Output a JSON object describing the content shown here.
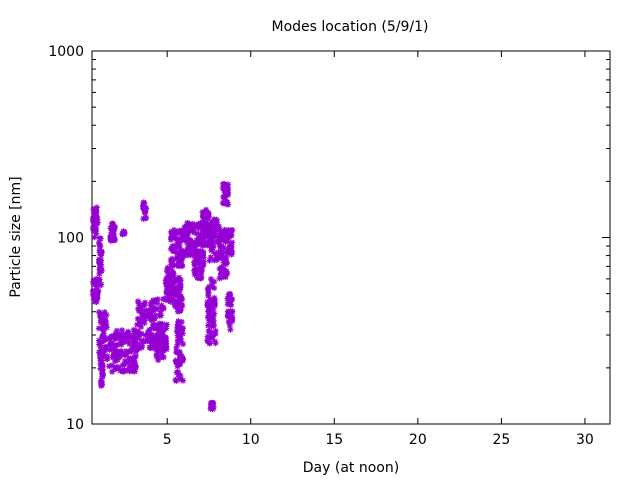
{
  "chart_data": {
    "type": "scatter",
    "title": "Modes location (5/9/1)",
    "xlabel": "Day (at noon)",
    "ylabel": "Particle size [nm]",
    "xlim": [
      0.5,
      31.5
    ],
    "ylim": [
      10,
      1000
    ],
    "y_scale": "log",
    "grid": false,
    "legend": "none",
    "marker": "asterisk",
    "color": "#9400d3",
    "x_ticks": [
      5,
      10,
      15,
      20,
      25,
      30
    ],
    "x_tick_labels": [
      "5",
      "10",
      "15",
      "20",
      "25",
      "30"
    ],
    "y_ticks": [
      10,
      100,
      1000
    ],
    "y_tick_labels": [
      "10",
      "100",
      "1000"
    ],
    "clusters": [
      {
        "x_range": [
          0.5,
          0.9
        ],
        "y_range": [
          45,
          60
        ]
      },
      {
        "x_range": [
          0.55,
          0.85
        ],
        "y_range": [
          100,
          145
        ]
      },
      {
        "x_range": [
          0.9,
          1.1
        ],
        "y_range": [
          55,
          100
        ]
      },
      {
        "x_range": [
          0.9,
          1.4
        ],
        "y_range": [
          22,
          40
        ]
      },
      {
        "x_range": [
          1.0,
          1.15
        ],
        "y_range": [
          16,
          22
        ]
      },
      {
        "x_range": [
          1.6,
          1.9
        ],
        "y_range": [
          95,
          120
        ]
      },
      {
        "x_range": [
          1.4,
          3.2
        ],
        "y_range": [
          19,
          32
        ]
      },
      {
        "x_range": [
          2.3,
          2.45
        ],
        "y_range": [
          104,
          108
        ]
      },
      {
        "x_range": [
          3.2,
          4.8
        ],
        "y_range": [
          25,
          48
        ]
      },
      {
        "x_range": [
          3.55,
          3.75
        ],
        "y_range": [
          125,
          155
        ]
      },
      {
        "x_range": [
          4.3,
          5.0
        ],
        "y_range": [
          22,
          35
        ]
      },
      {
        "x_range": [
          4.9,
          5.4
        ],
        "y_range": [
          45,
          70
        ]
      },
      {
        "x_range": [
          5.2,
          6.0
        ],
        "y_range": [
          70,
          110
        ]
      },
      {
        "x_range": [
          5.4,
          5.9
        ],
        "y_range": [
          40,
          62
        ]
      },
      {
        "x_range": [
          5.5,
          5.95
        ],
        "y_range": [
          17,
          38
        ]
      },
      {
        "x_range": [
          6.0,
          7.2
        ],
        "y_range": [
          80,
          120
        ]
      },
      {
        "x_range": [
          6.6,
          7.2
        ],
        "y_range": [
          60,
          85
        ]
      },
      {
        "x_range": [
          7.1,
          7.5
        ],
        "y_range": [
          90,
          145
        ]
      },
      {
        "x_range": [
          7.4,
          7.9
        ],
        "y_range": [
          25,
          60
        ]
      },
      {
        "x_range": [
          7.5,
          8.1
        ],
        "y_range": [
          75,
          125
        ]
      },
      {
        "x_range": [
          7.6,
          7.8
        ],
        "y_range": [
          12,
          13
        ]
      },
      {
        "x_range": [
          8.1,
          8.6
        ],
        "y_range": [
          60,
          110
        ]
      },
      {
        "x_range": [
          8.3,
          8.65
        ],
        "y_range": [
          150,
          195
        ]
      },
      {
        "x_range": [
          8.6,
          8.9
        ],
        "y_range": [
          80,
          110
        ]
      },
      {
        "x_range": [
          8.6,
          8.9
        ],
        "y_range": [
          32,
          50
        ]
      }
    ]
  }
}
